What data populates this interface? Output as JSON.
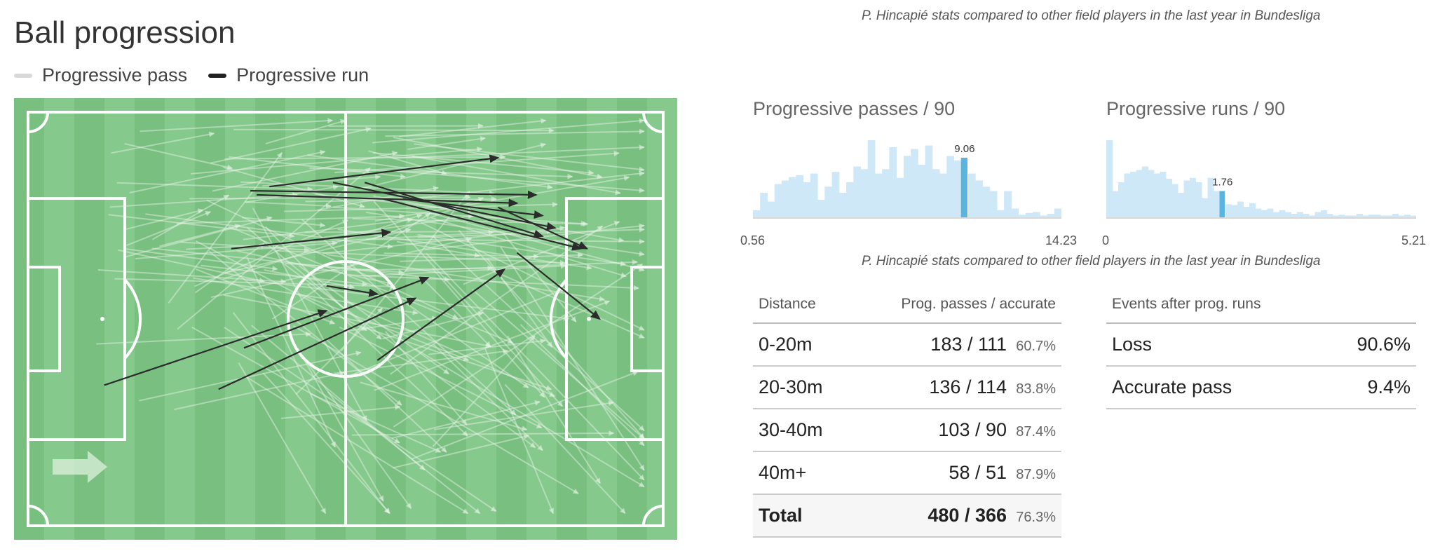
{
  "title": "Ball progression",
  "legend": [
    {
      "label": "Progressive pass",
      "color": "#d9d9d9"
    },
    {
      "label": "Progressive run",
      "color": "#222222"
    }
  ],
  "caption_top": "P. Hincapié stats compared to other field players in the last year in Bundesliga",
  "caption_mid": "P. Hincapié stats compared to other field players in the last year in Bundesliga",
  "colors": {
    "pitch_light": "#86c98c",
    "pitch_dark": "#79bf80",
    "hist_bar": "#cfe8f7",
    "hist_highlight": "#5ab4e0"
  },
  "chart_data": [
    {
      "type": "pitch-map",
      "direction_icon": "arrow-right-icon",
      "runs": [
        {
          "from": [
            38,
            18
          ],
          "to": [
            74,
            11
          ]
        },
        {
          "from": [
            35,
            19
          ],
          "to": [
            80,
            20
          ]
        },
        {
          "from": [
            36,
            20
          ],
          "to": [
            77,
            22
          ]
        },
        {
          "from": [
            48,
            17
          ],
          "to": [
            83,
            28
          ]
        },
        {
          "from": [
            53,
            17
          ],
          "to": [
            81,
            30
          ]
        },
        {
          "from": [
            32,
            33
          ],
          "to": [
            57,
            29
          ]
        },
        {
          "from": [
            47,
            42
          ],
          "to": [
            55,
            44
          ]
        },
        {
          "from": [
            34,
            57
          ],
          "to": [
            63,
            40
          ]
        },
        {
          "from": [
            12,
            66
          ],
          "to": [
            47,
            48
          ]
        },
        {
          "from": [
            30,
            67
          ],
          "to": [
            61,
            45
          ]
        },
        {
          "from": [
            56,
            21
          ],
          "to": [
            87,
            33
          ]
        },
        {
          "from": [
            77,
            34
          ],
          "to": [
            90,
            50
          ]
        },
        {
          "from": [
            59,
            21
          ],
          "to": [
            81,
            25
          ]
        },
        {
          "from": [
            74,
            23
          ],
          "to": [
            88,
            33
          ]
        },
        {
          "from": [
            55,
            60
          ],
          "to": [
            75,
            38
          ]
        }
      ]
    },
    {
      "type": "bar",
      "title": "Progressive passes / 90",
      "xlim": [
        0.56,
        14.23
      ],
      "xtick_labels": [
        "0.56",
        "14.23"
      ],
      "highlight_label": "9.06",
      "highlight_index": 29,
      "values": [
        8,
        28,
        18,
        38,
        42,
        46,
        48,
        40,
        50,
        20,
        35,
        52,
        28,
        40,
        58,
        55,
        88,
        50,
        55,
        80,
        45,
        70,
        78,
        60,
        82,
        55,
        50,
        70,
        65,
        68,
        50,
        42,
        35,
        30,
        8,
        30,
        10,
        3,
        5,
        6,
        2,
        4,
        10
      ]
    },
    {
      "type": "bar",
      "title": "Progressive runs / 90",
      "xlim": [
        0,
        5.21
      ],
      "xtick_labels": [
        "0",
        "5.21"
      ],
      "highlight_label": "1.76",
      "highlight_index": 19,
      "values": [
        88,
        30,
        40,
        50,
        52,
        54,
        58,
        54,
        50,
        52,
        44,
        38,
        28,
        42,
        45,
        40,
        22,
        45,
        30,
        30,
        15,
        14,
        18,
        12,
        16,
        10,
        8,
        10,
        6,
        8,
        6,
        4,
        6,
        4,
        2,
        6,
        8,
        4,
        2,
        3,
        2,
        2,
        4,
        2,
        3,
        3,
        2,
        2,
        4,
        2,
        3,
        2
      ]
    }
  ],
  "distance_table": {
    "headers": [
      "Distance",
      "Prog. passes / accurate"
    ],
    "rows": [
      {
        "distance": "0-20m",
        "value": "183 / 111",
        "pct": "60.7%"
      },
      {
        "distance": "20-30m",
        "value": "136 / 114",
        "pct": "83.8%"
      },
      {
        "distance": "30-40m",
        "value": "103 / 90",
        "pct": "87.4%"
      },
      {
        "distance": "40m+",
        "value": "58 / 51",
        "pct": "87.9%"
      },
      {
        "distance": "Total",
        "value": "480 / 366",
        "pct": "76.3%"
      }
    ]
  },
  "events_table": {
    "header": "Events after prog. runs",
    "rows": [
      {
        "label": "Loss",
        "pct": "90.6%"
      },
      {
        "label": "Accurate pass",
        "pct": "9.4%"
      }
    ]
  }
}
